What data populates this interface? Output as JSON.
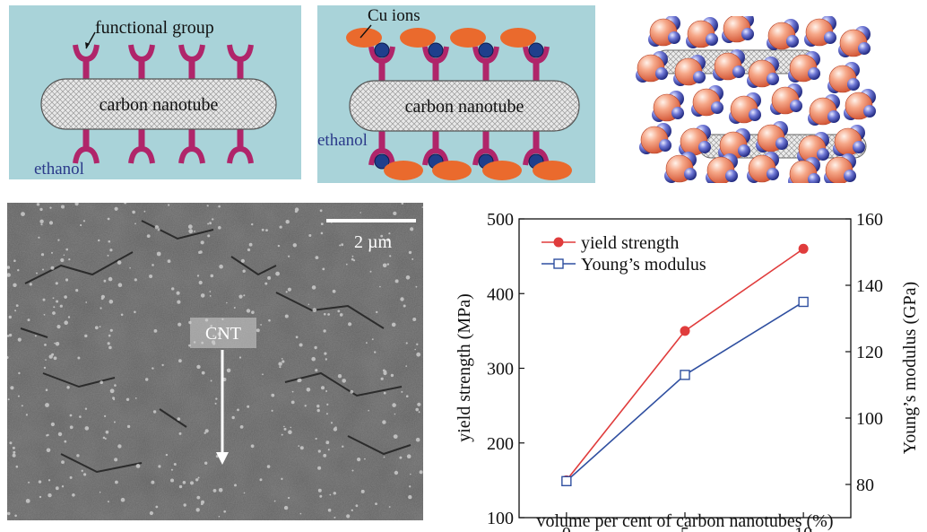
{
  "schematic_a": {
    "label_functional_group": "functional group",
    "label_cnt": "carbon nanotube",
    "label_solvent": "ethanol",
    "colors": {
      "bg": "#a9d3d9",
      "linker": "#b0256a",
      "tube": "#e6e6e6"
    }
  },
  "schematic_b": {
    "label_ions": "Cu ions",
    "label_cnt": "carbon nanotube",
    "label_solvent": "ethanol",
    "colors": {
      "bg": "#a9d3d9",
      "ion": "#ea6a2d",
      "bead": "#1f3f8c"
    }
  },
  "micrograph": {
    "scale_bar_label": "2 µm",
    "cnt_label": "CNT"
  },
  "chart_data": {
    "type": "line",
    "xlabel": "volume per cent of carbon nanotubes (%)",
    "ylabel": "yield strength (MPa)",
    "y2label": "Young’s modulus (GPa)",
    "x": [
      0,
      5,
      10
    ],
    "xticks": [
      "0",
      "5",
      "10"
    ],
    "xlim": [
      -2,
      12
    ],
    "ylim": [
      100,
      500
    ],
    "yticks": [
      "100",
      "200",
      "300",
      "400",
      "500"
    ],
    "y2lim": [
      70,
      160
    ],
    "y2ticks": [
      "80",
      "100",
      "120",
      "140",
      "160"
    ],
    "legend_position": "top-left",
    "series": [
      {
        "name": "yield strength",
        "axis": "left",
        "marker": "filled-circle",
        "color": "#e03c3c",
        "values": [
          150,
          350,
          460
        ]
      },
      {
        "name": "Young’s modulus",
        "axis": "right",
        "marker": "open-square",
        "color": "#2f4fa0",
        "values": [
          81,
          113,
          135
        ]
      }
    ]
  }
}
